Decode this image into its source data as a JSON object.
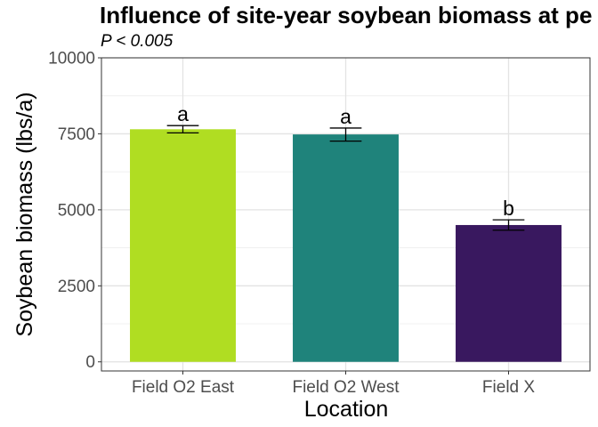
{
  "chart_data": {
    "type": "bar",
    "title": "Influence of site-year soybean biomass at pe",
    "subtitle": "P < 0.005",
    "xlabel": "Location",
    "ylabel": "Soybean biomass (lbs/a)",
    "categories": [
      "Field O2 East",
      "Field O2 West",
      "Field X"
    ],
    "values": [
      7650,
      7480,
      4500
    ],
    "error_low": [
      7530,
      7260,
      4330
    ],
    "error_high": [
      7770,
      7690,
      4670
    ],
    "significance_labels": [
      "a",
      "a",
      "b"
    ],
    "colors": [
      "#b0dd22",
      "#1f837b",
      "#39185f"
    ],
    "ylim": [
      -300,
      10000
    ],
    "yticks": [
      0,
      2500,
      5000,
      7500,
      10000
    ],
    "ytick_labels": [
      "0",
      "2500",
      "5000",
      "7500",
      "10000"
    ],
    "grid": true,
    "legend": "none"
  }
}
